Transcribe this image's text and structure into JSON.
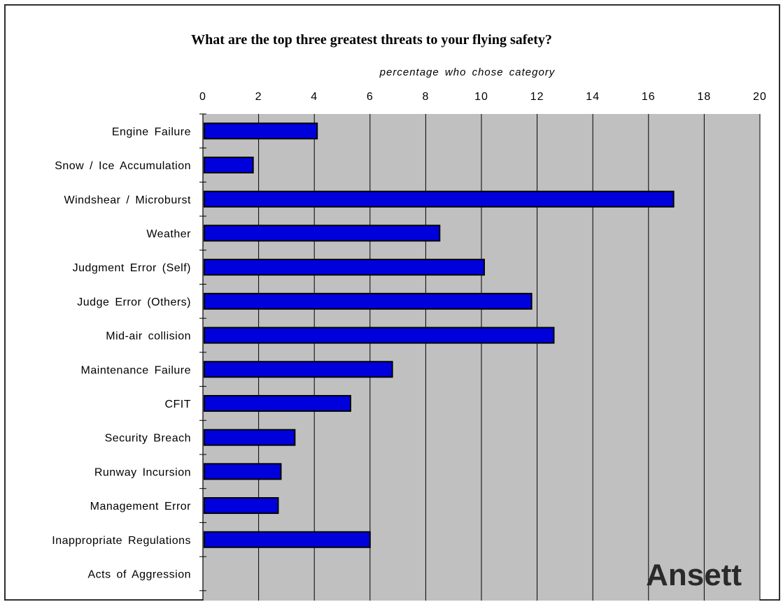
{
  "chart_data": {
    "type": "bar",
    "orientation": "horizontal",
    "title": "What are the top three greatest threats to your flying safety?",
    "xlabel": "percentage who chose category",
    "xlim": [
      0,
      20
    ],
    "xticks": [
      0,
      2,
      4,
      6,
      8,
      10,
      12,
      14,
      16,
      18,
      20
    ],
    "x_axis_position": "top",
    "grid": true,
    "categories": [
      "Engine Failure",
      "Snow / Ice Accumulation",
      "Windshear / Microburst",
      "Weather",
      "Judgment Error (Self)",
      "Judge Error (Others)",
      "Mid-air collision",
      "Maintenance Failure",
      "CFIT",
      "Security Breach",
      "Runway Incursion",
      "Management Error",
      "Inappropriate Regulations",
      "Acts of Aggression"
    ],
    "values": [
      4.1,
      1.8,
      16.9,
      8.5,
      10.1,
      11.8,
      12.6,
      6.8,
      5.3,
      3.3,
      2.8,
      2.7,
      6.0,
      0
    ],
    "colors": {
      "bar": "#0000dd",
      "bar_edge": "#000000",
      "plot_background": "#c0c0c0",
      "gridline": "#000000"
    },
    "annotation": "Ansett"
  }
}
